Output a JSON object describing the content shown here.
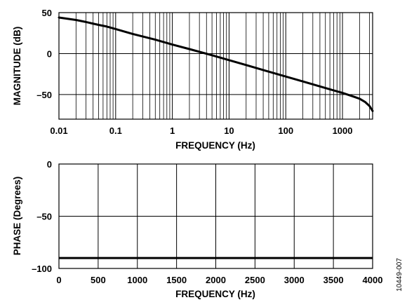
{
  "chart_data": [
    {
      "type": "line",
      "title": "",
      "xlabel": "FREQUENCY (Hz)",
      "ylabel": "MAGNITUDE (dB)",
      "xscale": "log",
      "xlim": [
        0.01,
        3400
      ],
      "ylim": [
        -80,
        50
      ],
      "grid": true,
      "x_ticks": [
        {
          "value": 0.01,
          "label": "0.01"
        },
        {
          "value": 0.1,
          "label": "0.1"
        },
        {
          "value": 1,
          "label": "1"
        },
        {
          "value": 10,
          "label": "10"
        },
        {
          "value": 100,
          "label": "100"
        },
        {
          "value": 1000,
          "label": "1000"
        }
      ],
      "y_ticks": [
        {
          "value": 50,
          "label": "50"
        },
        {
          "value": 0,
          "label": "0"
        },
        {
          "value": -50,
          "label": "–50"
        }
      ],
      "series": [
        {
          "color": "#000000",
          "x": [
            0.01,
            0.02,
            0.03,
            0.05,
            0.07,
            0.1,
            0.2,
            0.5,
            1,
            2,
            5,
            10,
            20,
            50,
            100,
            200,
            500,
            1000,
            1500,
            2000,
            2500,
            3000,
            3400
          ],
          "y": [
            44,
            41,
            38.5,
            35,
            33,
            30,
            24,
            17,
            11,
            5.5,
            -2,
            -8,
            -14,
            -22,
            -28,
            -34,
            -42,
            -48,
            -52,
            -55,
            -59,
            -64,
            -70
          ]
        }
      ]
    },
    {
      "type": "line",
      "title": "",
      "xlabel": "FREQUENCY (Hz)",
      "ylabel": "PHASE (Degrees)",
      "xlim": [
        0,
        4000
      ],
      "ylim": [
        -100,
        0
      ],
      "grid": true,
      "x_ticks": [
        {
          "value": 0,
          "label": "0"
        },
        {
          "value": 500,
          "label": "500"
        },
        {
          "value": 1000,
          "label": "1000"
        },
        {
          "value": 1500,
          "label": "1500"
        },
        {
          "value": 2000,
          "label": "2000"
        },
        {
          "value": 2500,
          "label": "2500"
        },
        {
          "value": 3000,
          "label": "3000"
        },
        {
          "value": 3500,
          "label": "3500"
        },
        {
          "value": 4000,
          "label": "4000"
        }
      ],
      "y_ticks": [
        {
          "value": 0,
          "label": "0"
        },
        {
          "value": -50,
          "label": "–50"
        },
        {
          "value": -100,
          "label": "–100"
        }
      ],
      "series": [
        {
          "color": "#000000",
          "x": [
            0,
            4000
          ],
          "y": [
            -90,
            -90
          ]
        }
      ]
    }
  ],
  "figure_number": "10449-007"
}
